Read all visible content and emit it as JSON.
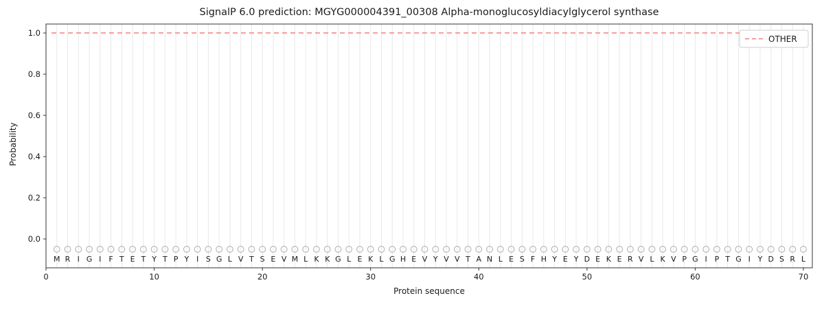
{
  "chart_data": {
    "type": "line",
    "title": "SignalP 6.0 prediction: MGYG000004391_00308 Alpha-monoglucosyldiacylglycerol synthase",
    "xlabel": "Protein sequence",
    "ylabel": "Probability",
    "xlim": [
      0,
      70.8
    ],
    "ylim": [
      -0.14,
      1.043
    ],
    "x_ticks": [
      0,
      10,
      20,
      30,
      40,
      50,
      60,
      70
    ],
    "y_ticks": [
      "0.0",
      "0.2",
      "0.4",
      "0.6",
      "0.8",
      "1.0"
    ],
    "grid": "vertical line at every residue position",
    "legend": {
      "position": "upper right",
      "entries": [
        {
          "label": "OTHER",
          "color": "#f57b7b",
          "style": "dashed"
        }
      ]
    },
    "series": [
      {
        "name": "OTHER",
        "style": "dashed",
        "color": "#f57b7b",
        "x_start": 1,
        "x_end": 70,
        "y_constant": 1.0
      }
    ],
    "sequence": "MRIGIFTETYTPYISGLVTSEVMLKKGLEKLGHEVYVVTANLESFHYEYDEKERVLKVPGIPTGIYDSRL",
    "residue_marker": {
      "shape": "open-circle",
      "color": "#b3b3b3",
      "y": -0.05
    },
    "colors": {
      "grid": "#e8e8e8",
      "spine": "#333333",
      "tick_label": "#1a1a1a",
      "letter": "#1a1a1a",
      "legend_border": "#cccccc"
    }
  }
}
